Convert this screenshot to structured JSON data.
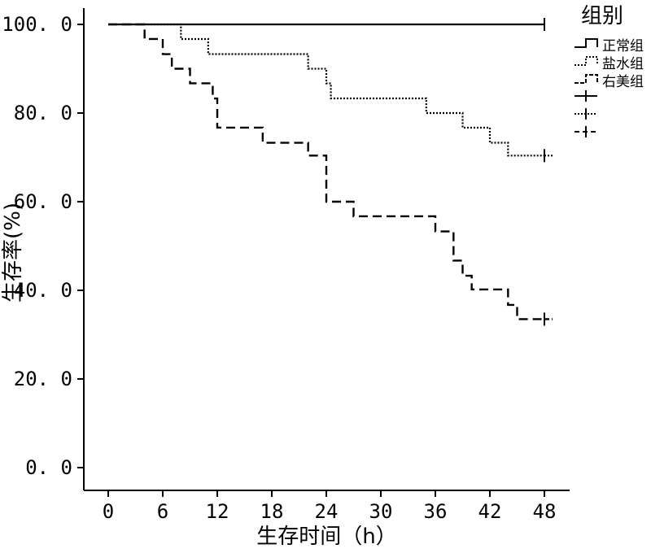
{
  "chart_data": {
    "type": "line",
    "title": "",
    "xlabel": "生存时间（h）",
    "ylabel": "生存率(%)",
    "xlim": [
      0,
      48
    ],
    "ylim": [
      0,
      100
    ],
    "x_ticks": [
      0,
      6,
      12,
      18,
      24,
      30,
      36,
      42,
      48
    ],
    "x_tick_labels": [
      "0",
      "6",
      "12",
      "18",
      "24",
      "30",
      "36",
      "42",
      "48"
    ],
    "y_ticks": [
      0,
      20,
      40,
      60,
      80,
      100
    ],
    "y_tick_labels": [
      "0. 0",
      "20. 0",
      "40. 0",
      "60. 0",
      "80. 0",
      "100. 0"
    ],
    "grid": false,
    "legend": {
      "title": "组别",
      "position": "top-right",
      "entries": [
        "正常组",
        "盐水组",
        "右美组"
      ]
    },
    "series": [
      {
        "name": "正常组",
        "style": "solid",
        "steps": [
          [
            0,
            100
          ],
          [
            48,
            100
          ]
        ],
        "censored": [
          48
        ]
      },
      {
        "name": "盐水组",
        "style": "dotted",
        "steps": [
          [
            0,
            100
          ],
          [
            8,
            96.7
          ],
          [
            11,
            93.3
          ],
          [
            22,
            90
          ],
          [
            24,
            86.7
          ],
          [
            24.5,
            83.3
          ],
          [
            35,
            80
          ],
          [
            39,
            76.7
          ],
          [
            42,
            73.3
          ],
          [
            44,
            70.4
          ],
          [
            48,
            70.4
          ]
        ],
        "censored": [
          48
        ]
      },
      {
        "name": "右美组",
        "style": "dashed",
        "steps": [
          [
            0,
            100
          ],
          [
            4,
            96.7
          ],
          [
            6,
            93.3
          ],
          [
            7,
            90
          ],
          [
            9,
            86.7
          ],
          [
            11.5,
            83.3
          ],
          [
            12,
            76.7
          ],
          [
            17,
            73.3
          ],
          [
            22,
            70.4
          ],
          [
            24,
            60
          ],
          [
            27,
            56.7
          ],
          [
            36,
            53.3
          ],
          [
            38,
            46.7
          ],
          [
            39,
            43.3
          ],
          [
            40,
            40.2
          ],
          [
            44,
            36.7
          ],
          [
            45,
            33.5
          ],
          [
            48,
            33.5
          ]
        ],
        "censored": [
          48
        ]
      }
    ]
  }
}
